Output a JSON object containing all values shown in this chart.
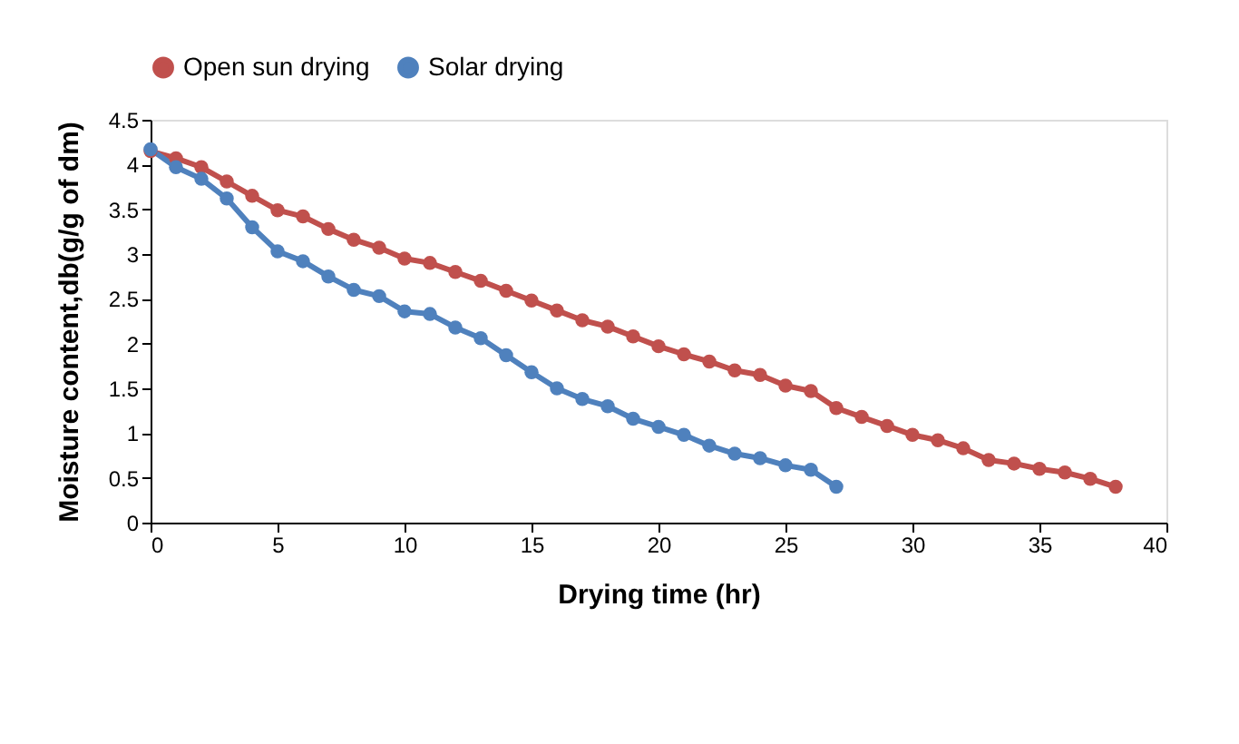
{
  "chart_data": {
    "type": "line",
    "xlabel": "Drying time (hr)",
    "ylabel": "Moisture content,db(g/g of dm)",
    "xlim": [
      0,
      40
    ],
    "xticks": [
      0,
      5,
      10,
      15,
      20,
      25,
      30,
      35,
      40
    ],
    "ylim": [
      0,
      4.5
    ],
    "yticks": [
      0,
      0.5,
      1,
      1.5,
      2,
      2.5,
      3,
      3.5,
      4,
      4.5
    ],
    "grid": false,
    "legend": "top",
    "marker": "circle",
    "line_style": "solid",
    "series": [
      {
        "name": "Open sun drying",
        "color": "#c0504d",
        "x": [
          0,
          1,
          2,
          3,
          4,
          5,
          6,
          7,
          8,
          9,
          10,
          11,
          12,
          13,
          14,
          15,
          16,
          17,
          18,
          19,
          20,
          21,
          22,
          23,
          24,
          25,
          26,
          27,
          28,
          29,
          30,
          31,
          32,
          33,
          34,
          35,
          36,
          37,
          38
        ],
        "values": [
          4.15,
          4.07,
          3.97,
          3.81,
          3.65,
          3.49,
          3.42,
          3.28,
          3.16,
          3.07,
          2.95,
          2.9,
          2.8,
          2.7,
          2.59,
          2.48,
          2.37,
          2.26,
          2.19,
          2.08,
          1.97,
          1.88,
          1.8,
          1.7,
          1.65,
          1.53,
          1.47,
          1.28,
          1.18,
          1.08,
          0.98,
          0.92,
          0.83,
          0.7,
          0.66,
          0.6,
          0.56,
          0.49,
          0.4
        ]
      },
      {
        "name": "Solar drying",
        "color": "#4f81bd",
        "x": [
          0,
          1,
          2,
          3,
          4,
          5,
          6,
          7,
          8,
          9,
          10,
          11,
          12,
          13,
          14,
          15,
          16,
          17,
          18,
          19,
          20,
          21,
          22,
          23,
          24,
          25,
          26,
          27
        ],
        "values": [
          4.17,
          3.97,
          3.84,
          3.62,
          3.3,
          3.03,
          2.92,
          2.75,
          2.6,
          2.53,
          2.36,
          2.33,
          2.18,
          2.06,
          1.87,
          1.68,
          1.5,
          1.38,
          1.3,
          1.16,
          1.07,
          0.98,
          0.86,
          0.77,
          0.72,
          0.64,
          0.59,
          0.4
        ]
      }
    ]
  }
}
